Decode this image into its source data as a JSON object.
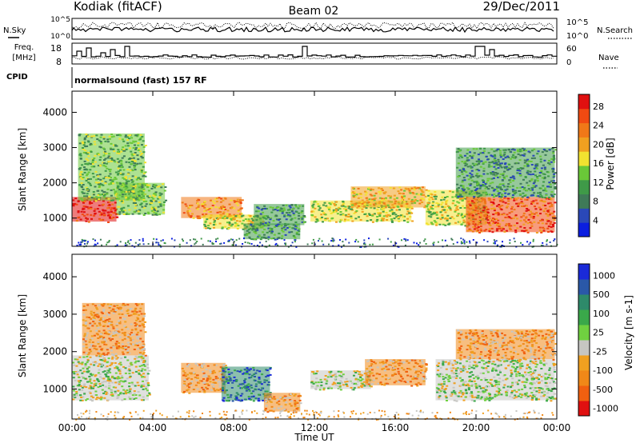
{
  "header": {
    "station": "Kodiak (fitACF)",
    "beam": "Beam 02",
    "date": "29/Dec/2011",
    "mode": "normalsound (fast) 157 RF"
  },
  "left_labels": {
    "nsky": "N.Sky",
    "freq": "Freq.",
    "freq_unit": "[MHz]",
    "cpid": "CPID"
  },
  "right_labels": {
    "nsearch": "N.Search",
    "nave": "Nave"
  },
  "strip_ticks": {
    "noise_top": "10^5",
    "noise_bottom": "10^0",
    "freq_top": "18",
    "freq_bottom": "8",
    "nave_top": "60",
    "nave_bottom": "0"
  },
  "colors": {
    "power_scale": [
      "#0b1ee0",
      "#2a48b8",
      "#3f7a58",
      "#3f9a48",
      "#6ac838",
      "#f2e230",
      "#f0a020",
      "#f07818",
      "#f04a12",
      "#e01010"
    ],
    "velocity_scale": [
      "#1a2ad8",
      "#2a58a8",
      "#2e8a6a",
      "#3aa84a",
      "#70d040",
      "#c6c6c2",
      "#f0a020",
      "#f08818",
      "#f06010",
      "#e01010"
    ]
  },
  "chart_data": [
    {
      "type": "heatmap",
      "panel": "power",
      "xlabel": "Time UT",
      "ylabel": "Slant Range [km]",
      "xlim": [
        0,
        24
      ],
      "ylim": [
        200,
        4600
      ],
      "x_ticks": [
        "00:00",
        "04:00",
        "08:00",
        "12:00",
        "16:00",
        "20:00",
        "00:00"
      ],
      "y_ticks": [
        1000,
        2000,
        3000,
        4000
      ],
      "colorbar_label": "Power [dB]",
      "colorbar_ticks": [
        "4",
        "8",
        "12",
        "16",
        "20",
        "24",
        "28"
      ],
      "colorbar_range": [
        0,
        30
      ],
      "echo_regions": [
        {
          "t": [
            0.0,
            2.2
          ],
          "r": [
            900,
            1600
          ],
          "value": 27
        },
        {
          "t": [
            0.3,
            3.6
          ],
          "r": [
            1500,
            3400
          ],
          "value": 14
        },
        {
          "t": [
            2.2,
            4.6
          ],
          "r": [
            1100,
            2000
          ],
          "value": 13
        },
        {
          "t": [
            5.4,
            8.4
          ],
          "r": [
            1000,
            1600
          ],
          "value": 22
        },
        {
          "t": [
            6.5,
            9.5
          ],
          "r": [
            700,
            1100
          ],
          "value": 15
        },
        {
          "t": [
            8.5,
            11.3
          ],
          "r": [
            400,
            850
          ],
          "value": 11
        },
        {
          "t": [
            9.0,
            11.5
          ],
          "r": [
            800,
            1400
          ],
          "value": 10
        },
        {
          "t": [
            11.8,
            16.8
          ],
          "r": [
            900,
            1500
          ],
          "value": 16
        },
        {
          "t": [
            13.8,
            17.5
          ],
          "r": [
            1300,
            1900
          ],
          "value": 19
        },
        {
          "t": [
            17.5,
            20.5
          ],
          "r": [
            800,
            1800
          ],
          "value": 15
        },
        {
          "t": [
            19.5,
            23.9
          ],
          "r": [
            600,
            1600
          ],
          "value": 25
        },
        {
          "t": [
            19.0,
            23.9
          ],
          "r": [
            1600,
            3000
          ],
          "value": 10
        }
      ]
    },
    {
      "type": "heatmap",
      "panel": "velocity",
      "xlabel": "Time UT",
      "ylabel": "Slant Range [km]",
      "xlim": [
        0,
        24
      ],
      "ylim": [
        200,
        4600
      ],
      "x_ticks": [
        "00:00",
        "04:00",
        "08:00",
        "12:00",
        "16:00",
        "20:00",
        "00:00"
      ],
      "y_ticks": [
        1000,
        2000,
        3000,
        4000
      ],
      "colorbar_label": "Velocity [m s-1]",
      "colorbar_ticks": [
        "1000",
        "500",
        "100",
        "25",
        "-25",
        "-100",
        "-500",
        "-1000"
      ],
      "echo_regions": [
        {
          "t": [
            0.0,
            3.8
          ],
          "r": [
            700,
            1900
          ],
          "value": 0
        },
        {
          "t": [
            0.5,
            3.6
          ],
          "r": [
            1900,
            3300
          ],
          "value": -200
        },
        {
          "t": [
            5.4,
            7.6
          ],
          "r": [
            900,
            1700
          ],
          "value": -200
        },
        {
          "t": [
            7.4,
            9.8
          ],
          "r": [
            700,
            1600
          ],
          "value": 150
        },
        {
          "t": [
            9.5,
            11.3
          ],
          "r": [
            400,
            900
          ],
          "value": -250
        },
        {
          "t": [
            11.8,
            14.8
          ],
          "r": [
            1000,
            1500
          ],
          "value": 0
        },
        {
          "t": [
            14.5,
            17.5
          ],
          "r": [
            1100,
            1800
          ],
          "value": -200
        },
        {
          "t": [
            18.0,
            23.9
          ],
          "r": [
            700,
            1800
          ],
          "value": 0
        },
        {
          "t": [
            19.0,
            23.9
          ],
          "r": [
            1800,
            2600
          ],
          "value": -200
        }
      ]
    }
  ]
}
